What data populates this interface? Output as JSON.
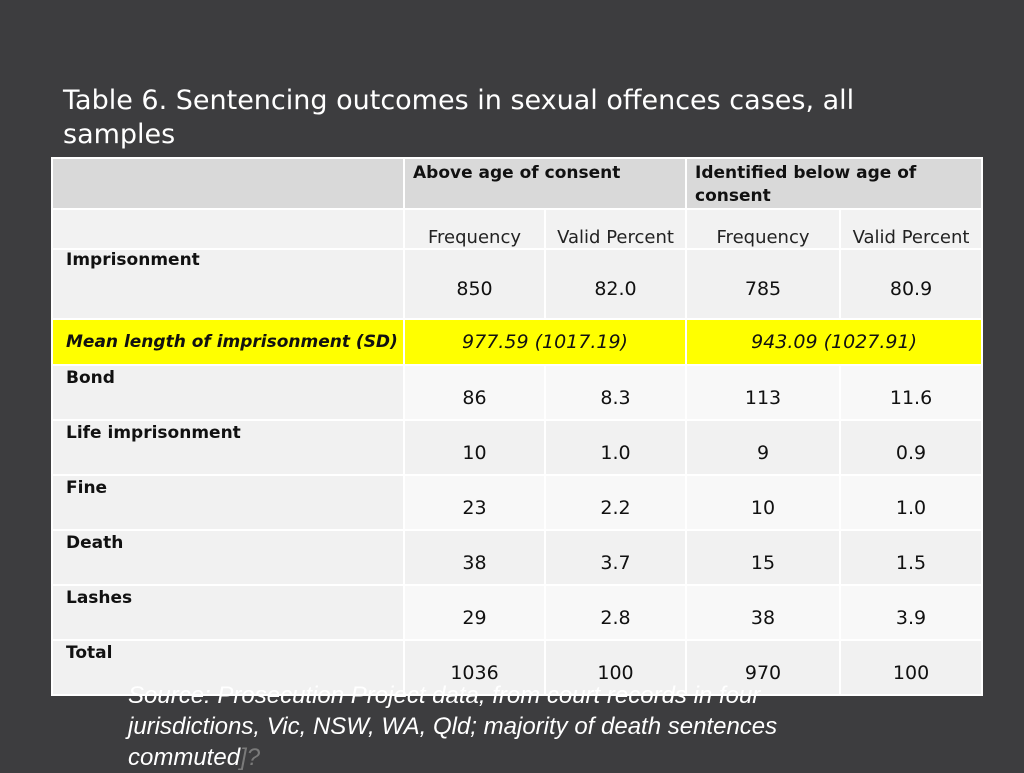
{
  "title": "Table 6. Sentencing outcomes in sexual offences cases, all samples",
  "table": {
    "group_headers": [
      "Above age of consent",
      "Identified below age of consent"
    ],
    "column_headers": [
      "Frequency",
      "Valid Percent",
      "Frequency",
      "Valid Percent"
    ],
    "rows": [
      {
        "label": "Imprisonment",
        "values": [
          "850",
          "82.0",
          "785",
          "80.9"
        ]
      },
      {
        "label": "Bond",
        "values": [
          "86",
          "8.3",
          "113",
          "11.6"
        ]
      },
      {
        "label": "Life imprisonment",
        "values": [
          "10",
          "1.0",
          "9",
          "0.9"
        ]
      },
      {
        "label": "Fine",
        "values": [
          "23",
          "2.2",
          "10",
          "1.0"
        ]
      },
      {
        "label": "Death",
        "values": [
          "38",
          "3.7",
          "15",
          "1.5"
        ]
      },
      {
        "label": "Lashes",
        "values": [
          "29",
          "2.8",
          "38",
          "3.9"
        ]
      },
      {
        "label": "Total",
        "values": [
          "1036",
          "100",
          "970",
          "100"
        ]
      }
    ],
    "mean_row": {
      "label": "Mean length of imprisonment (SD)",
      "above": "977.59 (1017.19)",
      "below": "943.09 (1027.91)",
      "highlight_color": "#ffff00"
    }
  },
  "source": {
    "text": "Source: Prosecution Project data, from court records in four jurisdictions, Vic, NSW, WA, Qld; majority of death sentences commuted",
    "suffix": "]?"
  },
  "colors": {
    "background": "#3d3d3f",
    "header": "#d9d9d9",
    "highlight": "#ffff00"
  }
}
